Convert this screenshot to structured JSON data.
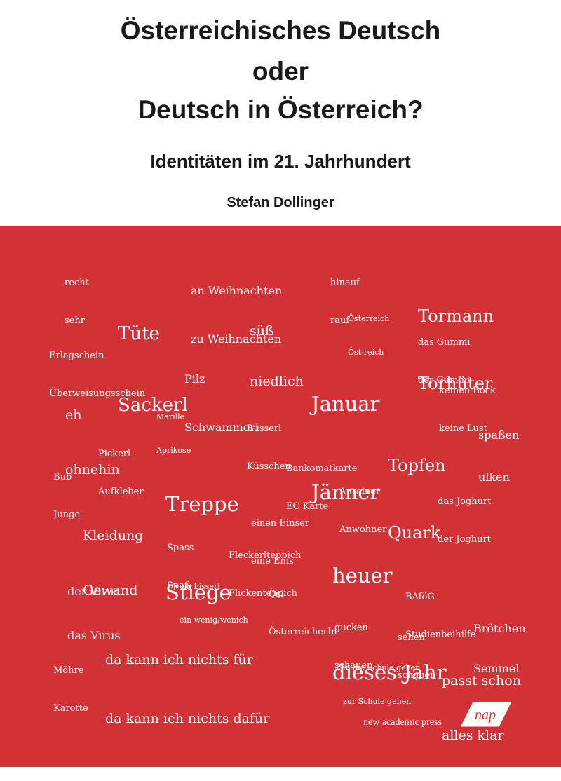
{
  "title": {
    "line1": "Österreichisches Deutsch",
    "line2": "oder",
    "line3": "Deutsch in Österreich?"
  },
  "subtitle": "Identitäten im 21. Jahrhundert",
  "author": "Stefan Dollinger",
  "words": {
    "recht_sehr": [
      "recht",
      "sehr"
    ],
    "weihnachten": [
      "an Weihnachten",
      "zu Weihnachten"
    ],
    "hinauf_rauf": [
      "hinauf",
      "rauf"
    ],
    "tormann": [
      "Tormann",
      "Torhüter"
    ],
    "tuete": [
      "Tüte",
      "Sackerl"
    ],
    "suess": [
      "süß",
      "niedlich"
    ],
    "oesterreich": [
      "Österreich",
      "Öst-reich"
    ],
    "gummi": [
      "das Gummi",
      "der Gummi"
    ],
    "erlagschein": [
      "Erlagschein",
      "Überweisungsschein"
    ],
    "pilz": [
      "Pilz",
      "Schwammerl"
    ],
    "januar": [
      "Januar",
      "Jänner"
    ],
    "bock": [
      "keinen Bock",
      "keine Lust"
    ],
    "eh": [
      "eh",
      "ohnehin"
    ],
    "marille": [
      "Marille",
      "Aprikose"
    ],
    "busserl": [
      "Busserl",
      "Küsschen"
    ],
    "spassen": [
      "spaßen",
      "ulken"
    ],
    "topfen": [
      "Topfen",
      "Quark"
    ],
    "pickerl": [
      "Pickerl",
      "Aufkleber"
    ],
    "treppe": [
      "Treppe",
      "Stiege"
    ],
    "bankomat": [
      "Bankomatkarte",
      "EC Karte"
    ],
    "bub": [
      "Bub",
      "Junge"
    ],
    "anrainer": [
      "Anrainer",
      "Anwohner"
    ],
    "joghurt": [
      "das Joghurt",
      "der Joghurt"
    ],
    "kleidung": [
      "Kleidung",
      "Gewand"
    ],
    "einser": [
      "einen Einser",
      "eine Eins"
    ],
    "heuer": [
      "heuer",
      "dieses Jahr"
    ],
    "spass": [
      "Spass",
      "Spaß"
    ],
    "fleckerl": [
      "Fleckerlteppich",
      "Flickenteppich"
    ],
    "virus": [
      "der Virus",
      "das Virus"
    ],
    "bisserl": [
      "ein bisserl",
      "ein wenig/wenich"
    ],
    "oesi": [
      "Ösi",
      "ÖsterreicherIn"
    ],
    "bafoeg": [
      "BAföG",
      "Studienbeihilfe"
    ],
    "gucken": [
      "gucken",
      "schauen"
    ],
    "sehen": [
      "sehen",
      "schauen"
    ],
    "broetchen": [
      "Brötchen",
      "Semmel"
    ],
    "dafuer": [
      "da kann ich nichts für",
      "da kann ich nichts dafür"
    ],
    "moehre": [
      "Möhre",
      "Karotte"
    ],
    "schule": [
      "in die Schule gehen",
      "zur Schule gehen"
    ],
    "passt": [
      "passt schon",
      "alles klar"
    ]
  },
  "publisher": {
    "name": "new academic press",
    "logo_text": "nap"
  },
  "colors": {
    "background_top": "#ffffff",
    "background_red": "#d23236",
    "text_dark": "#1a1a1a",
    "text_light": "#ffffff"
  }
}
